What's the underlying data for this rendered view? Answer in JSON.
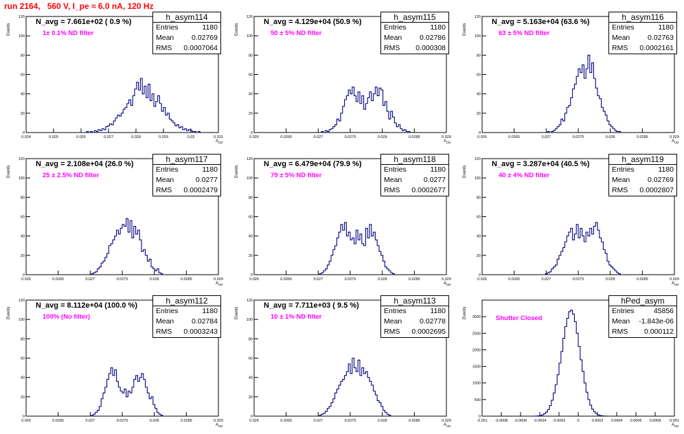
{
  "page": {
    "title": "run 2164,   560 V, I_pe ≈ 6.0 nA, 120 Hz",
    "y_axis_label": "Events",
    "x_axis_label": "A",
    "x_axis_label_sub": "UD"
  },
  "colors": {
    "histogram_line": "#000080",
    "title": "#ff0000",
    "filter_text": "#ff00ff"
  },
  "chart_data": [
    {
      "type": "bar",
      "name": "h_asym114",
      "navg": "N_avg = 7.661e+02 ( 0.9 %)",
      "filter": "1± 0.1% ND filter",
      "stats": [
        [
          "Entries",
          "1180"
        ],
        [
          "Mean",
          "0.02769"
        ],
        [
          "RMS",
          "0.0007064"
        ]
      ],
      "xlim": [
        0.024,
        0.031
      ],
      "ylim": [
        0,
        120
      ],
      "xticks": [
        "0.024",
        "0.025",
        "0.026",
        "0.027",
        "0.028",
        "0.029",
        "0.03",
        "0.031"
      ],
      "yticks": [
        "0",
        "20",
        "40",
        "60",
        "80",
        "100",
        "120"
      ],
      "bin_start": 0.0262,
      "bin_width": 7e-05,
      "values": [
        1,
        0,
        1,
        0,
        2,
        1,
        3,
        2,
        4,
        3,
        6,
        7,
        9,
        8,
        12,
        15,
        18,
        17,
        20,
        24,
        26,
        30,
        34,
        28,
        38,
        45,
        52,
        44,
        56,
        40,
        48,
        36,
        50,
        33,
        40,
        27,
        32,
        38,
        30,
        22,
        26,
        18,
        20,
        14,
        12,
        10,
        7,
        8,
        5,
        6,
        3,
        4,
        2,
        3,
        2,
        1,
        1,
        0,
        1
      ]
    },
    {
      "type": "bar",
      "name": "h_asym115",
      "navg": "N_avg = 4.129e+04 (50.9 %)",
      "filter": "50 ± 5% ND filter",
      "stats": [
        [
          "Entries",
          "1180"
        ],
        [
          "Mean",
          "0.02786"
        ],
        [
          "RMS",
          "0.000308"
        ]
      ],
      "xlim": [
        0.026,
        0.029
      ],
      "ylim": [
        0,
        120
      ],
      "xticks": [
        "0.026",
        "0.0265",
        "0.027",
        "0.0275",
        "0.028",
        "0.0285",
        "0.029"
      ],
      "yticks": [
        "0",
        "20",
        "40",
        "60",
        "80",
        "100",
        "120"
      ],
      "bin_start": 0.02705,
      "bin_width": 3e-05,
      "values": [
        1,
        0,
        2,
        1,
        3,
        4,
        6,
        8,
        14,
        12,
        20,
        27,
        34,
        38,
        44,
        40,
        47,
        38,
        32,
        42,
        30,
        38,
        24,
        30,
        36,
        42,
        33,
        40,
        47,
        38,
        46,
        44,
        28,
        32,
        22,
        14,
        22,
        16,
        10,
        6,
        8,
        4,
        2,
        3,
        1,
        1
      ]
    },
    {
      "type": "bar",
      "name": "h_asym116",
      "navg": "N_avg = 5.163e+04 (63.6 %)",
      "filter": "63 ± 5% ND filter",
      "stats": [
        [
          "Entries",
          "1180"
        ],
        [
          "Mean",
          "0.02763"
        ],
        [
          "RMS",
          "0.0002161"
        ]
      ],
      "xlim": [
        0.026,
        0.029
      ],
      "ylim": [
        0,
        120
      ],
      "xticks": [
        "0.026",
        "0.0265",
        "0.027",
        "0.0275",
        "0.028",
        "0.0285",
        "0.029"
      ],
      "yticks": [
        "0",
        "20",
        "40",
        "60",
        "80",
        "100",
        "120"
      ],
      "bin_start": 0.02702,
      "bin_width": 3e-05,
      "values": [
        1,
        0,
        1,
        2,
        4,
        6,
        8,
        14,
        12,
        20,
        26,
        28,
        36,
        45,
        50,
        58,
        66,
        62,
        70,
        56,
        66,
        80,
        62,
        72,
        56,
        46,
        38,
        35,
        26,
        22,
        18,
        12,
        8,
        6,
        4,
        2,
        1,
        1
      ]
    },
    {
      "type": "bar",
      "name": "h_asym117",
      "navg": "N_avg = 2.108e+04 (26.0 %)",
      "filter": "25 ± 2.5% ND filter",
      "stats": [
        [
          "Entries",
          "1180"
        ],
        [
          "Mean",
          "0.0277"
        ],
        [
          "RMS",
          "0.0002479"
        ]
      ],
      "xlim": [
        0.026,
        0.029
      ],
      "ylim": [
        0,
        120
      ],
      "xticks": [
        "0.026",
        "0.0265",
        "0.027",
        "0.0275",
        "0.028",
        "0.0285",
        "0.029"
      ],
      "yticks": [
        "0",
        "20",
        "40",
        "60",
        "80",
        "100",
        "120"
      ],
      "bin_start": 0.02702,
      "bin_width": 3e-05,
      "values": [
        1,
        2,
        3,
        6,
        8,
        12,
        14,
        18,
        22,
        30,
        32,
        36,
        40,
        46,
        42,
        48,
        52,
        50,
        58,
        44,
        56,
        38,
        50,
        42,
        46,
        36,
        24,
        26,
        20,
        14,
        16,
        8,
        6,
        4,
        6,
        2,
        1
      ]
    },
    {
      "type": "bar",
      "name": "h_asym118",
      "navg": "N_avg = 6.479e+04 (79.9 %)",
      "filter": "79 ± 5% ND filter",
      "stats": [
        [
          "Entries",
          "1180"
        ],
        [
          "Mean",
          "0.0277"
        ],
        [
          "RMS",
          "0.0002677"
        ]
      ],
      "xlim": [
        0.026,
        0.029
      ],
      "ylim": [
        0,
        120
      ],
      "xticks": [
        "0.026",
        "0.0265",
        "0.027",
        "0.0275",
        "0.028",
        "0.0285",
        "0.029"
      ],
      "yticks": [
        "0",
        "20",
        "40",
        "60",
        "80",
        "100",
        "120"
      ],
      "bin_start": 0.02702,
      "bin_width": 3e-05,
      "values": [
        1,
        2,
        4,
        6,
        10,
        14,
        20,
        26,
        30,
        38,
        44,
        52,
        46,
        54,
        40,
        44,
        36,
        38,
        32,
        46,
        36,
        42,
        32,
        30,
        48,
        38,
        52,
        40,
        44,
        36,
        30,
        24,
        20,
        14,
        8,
        6,
        4,
        2,
        1
      ]
    },
    {
      "type": "bar",
      "name": "h_asym119",
      "navg": "N_avg = 3.287e+04 (40.5 %)",
      "filter": "40 ± 4% ND filter",
      "stats": [
        [
          "Entries",
          "1180"
        ],
        [
          "Mean",
          "0.02769"
        ],
        [
          "RMS",
          "0.0002807"
        ]
      ],
      "xlim": [
        0.026,
        0.029
      ],
      "ylim": [
        0,
        120
      ],
      "xticks": [
        "0.026",
        "0.0265",
        "0.027",
        "0.0275",
        "0.028",
        "0.0285",
        "0.029"
      ],
      "yticks": [
        "0",
        "20",
        "40",
        "60",
        "80",
        "100",
        "120"
      ],
      "bin_start": 0.02699,
      "bin_width": 3e-05,
      "values": [
        1,
        2,
        3,
        6,
        8,
        10,
        16,
        20,
        24,
        28,
        34,
        40,
        44,
        48,
        36,
        42,
        52,
        38,
        48,
        40,
        34,
        44,
        40,
        48,
        42,
        50,
        54,
        46,
        38,
        34,
        26,
        22,
        14,
        10,
        8,
        6,
        4,
        2,
        1
      ]
    },
    {
      "type": "bar",
      "name": "h_asym112",
      "navg": "N_avg = 8.112e+04 (100.0 %)",
      "filter": "100% (No filter)",
      "stats": [
        [
          "Entries",
          "1180"
        ],
        [
          "Mean",
          "0.02784"
        ],
        [
          "RMS",
          "0.0003243"
        ]
      ],
      "xlim": [
        0.026,
        0.029
      ],
      "ylim": [
        0,
        120
      ],
      "xticks": [
        "0.026",
        "0.0265",
        "0.027",
        "0.0275",
        "0.028",
        "0.0285",
        "0.029"
      ],
      "yticks": [
        "0",
        "20",
        "40",
        "60",
        "80",
        "100",
        "120"
      ],
      "bin_start": 0.02702,
      "bin_width": 3e-05,
      "values": [
        1,
        2,
        4,
        6,
        10,
        18,
        24,
        30,
        38,
        44,
        50,
        42,
        48,
        36,
        30,
        26,
        24,
        28,
        20,
        26,
        24,
        30,
        38,
        42,
        36,
        40,
        44,
        38,
        30,
        24,
        18,
        20,
        12,
        8,
        4,
        2,
        1
      ]
    },
    {
      "type": "bar",
      "name": "h_asym113",
      "navg": "N_avg = 7.711e+03 ( 9.5 %)",
      "filter": "10 ± 1% ND filter",
      "stats": [
        [
          "Entries",
          "1180"
        ],
        [
          "Mean",
          "0.02778"
        ],
        [
          "RMS",
          "0.0002695"
        ]
      ],
      "xlim": [
        0.026,
        0.029
      ],
      "ylim": [
        0,
        120
      ],
      "xticks": [
        "0.026",
        "0.0265",
        "0.027",
        "0.0275",
        "0.028",
        "0.0285",
        "0.029"
      ],
      "yticks": [
        "0",
        "20",
        "40",
        "60",
        "80",
        "100",
        "120"
      ],
      "bin_start": 0.02702,
      "bin_width": 3e-05,
      "values": [
        1,
        2,
        3,
        5,
        8,
        10,
        14,
        18,
        24,
        28,
        32,
        36,
        38,
        42,
        46,
        54,
        44,
        60,
        50,
        46,
        58,
        42,
        50,
        44,
        46,
        40,
        36,
        32,
        26,
        22,
        16,
        14,
        10,
        6,
        4,
        2,
        1
      ]
    },
    {
      "type": "bar",
      "name": "hPed_asym",
      "navg": "",
      "filter": "Shutter Closed",
      "stats": [
        [
          "Entries",
          "45856"
        ],
        [
          "Mean",
          "-1.843e-06"
        ],
        [
          "RMS",
          "0.000112"
        ]
      ],
      "xlim": [
        -0.001,
        0.001
      ],
      "ylim": [
        0,
        3500
      ],
      "xticks": [
        "-0.001",
        "-0.0008",
        "-0.0006",
        "-0.0004",
        "-0.0002",
        "0",
        "0.0002",
        "0.0004",
        "0.0006",
        "0.0008",
        "0.001"
      ],
      "yticks": [
        "0",
        "500",
        "1000",
        "1500",
        "2000",
        "2500",
        "3000"
      ],
      "bin_start": -0.00046,
      "bin_width": 2e-05,
      "values": [
        2,
        4,
        10,
        20,
        40,
        70,
        120,
        200,
        320,
        480,
        700,
        950,
        1250,
        1600,
        1950,
        2350,
        2700,
        2950,
        3150,
        3200,
        3080,
        2850,
        2500,
        2100,
        1700,
        1350,
        1000,
        720,
        500,
        330,
        210,
        130,
        75,
        40,
        20,
        10,
        5,
        2
      ]
    }
  ]
}
